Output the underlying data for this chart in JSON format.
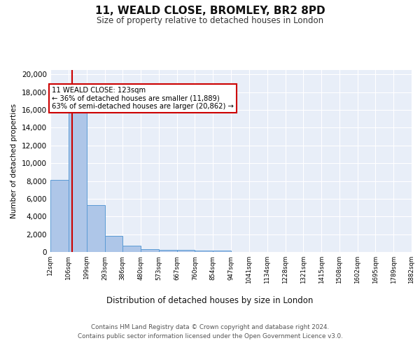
{
  "title_line1": "11, WEALD CLOSE, BROMLEY, BR2 8PD",
  "title_line2": "Size of property relative to detached houses in London",
  "xlabel": "Distribution of detached houses by size in London",
  "ylabel": "Number of detached properties",
  "bar_edges": [
    12,
    106,
    199,
    293,
    386,
    480,
    573,
    667,
    760,
    854,
    947,
    1041,
    1134,
    1228,
    1321,
    1415,
    1508,
    1602,
    1695,
    1789,
    1882
  ],
  "bar_heights": [
    8100,
    16600,
    5300,
    1850,
    700,
    320,
    230,
    200,
    165,
    160,
    0,
    0,
    0,
    0,
    0,
    0,
    0,
    0,
    0,
    0
  ],
  "bar_color": "#aec6e8",
  "bar_edge_color": "#5b9bd5",
  "property_line_x": 123,
  "property_line_color": "#cc0000",
  "annotation_text": "11 WEALD CLOSE: 123sqm\n← 36% of detached houses are smaller (11,889)\n63% of semi-detached houses are larger (20,862) →",
  "annotation_box_color": "#ffffff",
  "annotation_box_edge_color": "#cc0000",
  "ylim": [
    0,
    20500
  ],
  "yticks": [
    0,
    2000,
    4000,
    6000,
    8000,
    10000,
    12000,
    14000,
    16000,
    18000,
    20000
  ],
  "bg_color": "#e8eef8",
  "fig_bg_color": "#ffffff",
  "footer_line1": "Contains HM Land Registry data © Crown copyright and database right 2024.",
  "footer_line2": "Contains public sector information licensed under the Open Government Licence v3.0.",
  "grid_color": "#ffffff",
  "tick_labels": [
    "12sqm",
    "106sqm",
    "199sqm",
    "293sqm",
    "386sqm",
    "480sqm",
    "573sqm",
    "667sqm",
    "760sqm",
    "854sqm",
    "947sqm",
    "1041sqm",
    "1134sqm",
    "1228sqm",
    "1321sqm",
    "1415sqm",
    "1508sqm",
    "1602sqm",
    "1695sqm",
    "1789sqm",
    "1882sqm"
  ]
}
